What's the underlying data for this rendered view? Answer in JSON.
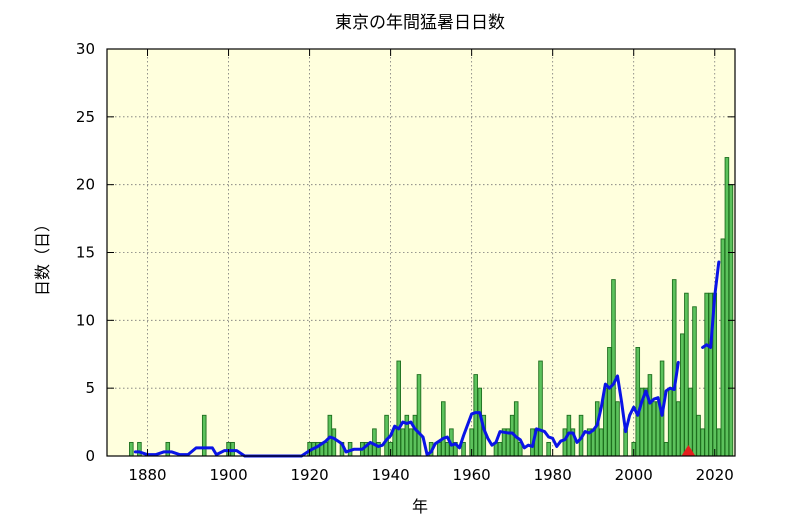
{
  "chart_data": {
    "type": "bar",
    "title": "東京の年間猛暑日日数",
    "xlabel": "年",
    "ylabel": "日数（日）",
    "xlim": [
      1870,
      2025
    ],
    "ylim": [
      0,
      30
    ],
    "x_ticks": [
      1880,
      1900,
      1920,
      1940,
      1960,
      1980,
      2000,
      2020
    ],
    "y_ticks": [
      0,
      5,
      10,
      15,
      20,
      25,
      30
    ],
    "grid": true,
    "legend": "none",
    "colors": {
      "background": "#ffffdd",
      "bar_fill": "#5cc25c",
      "bar_stroke": "#1e6e1e",
      "line": "#0a14e6",
      "marker": "#e61e1e"
    },
    "series": [
      {
        "type": "bar",
        "points": [
          [
            1876,
            1
          ],
          [
            1878,
            1
          ],
          [
            1885,
            1
          ],
          [
            1894,
            3
          ],
          [
            1900,
            1
          ],
          [
            1901,
            1
          ],
          [
            1920,
            1
          ],
          [
            1921,
            1
          ],
          [
            1922,
            1
          ],
          [
            1923,
            1
          ],
          [
            1924,
            1
          ],
          [
            1925,
            3
          ],
          [
            1926,
            2
          ],
          [
            1928,
            1
          ],
          [
            1930,
            1
          ],
          [
            1933,
            1
          ],
          [
            1934,
            1
          ],
          [
            1935,
            1
          ],
          [
            1936,
            2
          ],
          [
            1937,
            1
          ],
          [
            1939,
            3
          ],
          [
            1940,
            1
          ],
          [
            1941,
            2
          ],
          [
            1942,
            7
          ],
          [
            1943,
            2
          ],
          [
            1944,
            3
          ],
          [
            1945,
            2
          ],
          [
            1946,
            3
          ],
          [
            1947,
            6
          ],
          [
            1950,
            1
          ],
          [
            1952,
            1
          ],
          [
            1953,
            4
          ],
          [
            1954,
            1
          ],
          [
            1955,
            2
          ],
          [
            1956,
            1
          ],
          [
            1958,
            1
          ],
          [
            1960,
            2
          ],
          [
            1961,
            6
          ],
          [
            1962,
            5
          ],
          [
            1963,
            3
          ],
          [
            1966,
            1
          ],
          [
            1967,
            1
          ],
          [
            1968,
            2
          ],
          [
            1969,
            2
          ],
          [
            1970,
            3
          ],
          [
            1971,
            4
          ],
          [
            1972,
            1
          ],
          [
            1975,
            2
          ],
          [
            1976,
            2
          ],
          [
            1977,
            7
          ],
          [
            1979,
            1
          ],
          [
            1983,
            2
          ],
          [
            1984,
            3
          ],
          [
            1985,
            2
          ],
          [
            1987,
            3
          ],
          [
            1989,
            2
          ],
          [
            1990,
            2
          ],
          [
            1991,
            4
          ],
          [
            1992,
            2
          ],
          [
            1993,
            5
          ],
          [
            1994,
            8
          ],
          [
            1995,
            13
          ],
          [
            1996,
            4
          ],
          [
            1998,
            2
          ],
          [
            2000,
            1
          ],
          [
            2001,
            8
          ],
          [
            2002,
            5
          ],
          [
            2003,
            5
          ],
          [
            2004,
            6
          ],
          [
            2005,
            4
          ],
          [
            2006,
            4
          ],
          [
            2007,
            7
          ],
          [
            2008,
            1
          ],
          [
            2009,
            5
          ],
          [
            2010,
            13
          ],
          [
            2011,
            4
          ],
          [
            2012,
            9
          ],
          [
            2013,
            12
          ],
          [
            2014,
            5
          ],
          [
            2015,
            11
          ],
          [
            2016,
            3
          ],
          [
            2017,
            2
          ],
          [
            2018,
            12
          ],
          [
            2019,
            12
          ],
          [
            2020,
            12
          ],
          [
            2021,
            2
          ],
          [
            2022,
            16
          ],
          [
            2023,
            22
          ],
          [
            2024,
            20
          ]
        ]
      },
      {
        "type": "line",
        "segments": [
          [
            [
              1877,
              0.3
            ],
            [
              1878,
              0.3
            ],
            [
              1880,
              0.1
            ],
            [
              1882,
              0.1
            ],
            [
              1884,
              0.3
            ],
            [
              1886,
              0.3
            ],
            [
              1888,
              0.1
            ],
            [
              1890,
              0.1
            ],
            [
              1892,
              0.6
            ],
            [
              1896,
              0.6
            ],
            [
              1897,
              0.1
            ],
            [
              1899,
              0.4
            ],
            [
              1902,
              0.4
            ],
            [
              1904,
              0.0
            ],
            [
              1918,
              0.0
            ],
            [
              1920,
              0.4
            ],
            [
              1922,
              0.7
            ],
            [
              1924,
              1.1
            ],
            [
              1925,
              1.4
            ],
            [
              1926,
              1.3
            ],
            [
              1928,
              0.9
            ],
            [
              1929,
              0.3
            ],
            [
              1931,
              0.5
            ],
            [
              1933,
              0.5
            ],
            [
              1935,
              1.0
            ],
            [
              1937,
              0.7
            ],
            [
              1938,
              0.8
            ],
            [
              1939,
              1.2
            ],
            [
              1940,
              1.5
            ],
            [
              1941,
              2.2
            ],
            [
              1942,
              2.0
            ],
            [
              1943,
              2.5
            ],
            [
              1944,
              2.4
            ],
            [
              1945,
              2.5
            ],
            [
              1946,
              2.0
            ],
            [
              1947,
              1.7
            ],
            [
              1948,
              1.4
            ],
            [
              1949,
              0.1
            ],
            [
              1950,
              0.3
            ],
            [
              1951,
              0.9
            ],
            [
              1953,
              1.3
            ],
            [
              1954,
              1.4
            ],
            [
              1955,
              0.8
            ],
            [
              1956,
              0.9
            ],
            [
              1957,
              0.6
            ],
            [
              1958,
              1.5
            ],
            [
              1959,
              2.3
            ],
            [
              1960,
              3.1
            ],
            [
              1961,
              3.2
            ],
            [
              1962,
              3.2
            ],
            [
              1963,
              2.0
            ],
            [
              1964,
              1.3
            ],
            [
              1965,
              0.8
            ],
            [
              1966,
              1.0
            ],
            [
              1967,
              1.8
            ],
            [
              1969,
              1.7
            ],
            [
              1970,
              1.7
            ],
            [
              1971,
              1.4
            ],
            [
              1972,
              1.2
            ],
            [
              1973,
              0.6
            ],
            [
              1974,
              0.8
            ],
            [
              1975,
              0.7
            ],
            [
              1976,
              2.0
            ],
            [
              1977,
              1.9
            ],
            [
              1978,
              1.8
            ],
            [
              1979,
              1.4
            ],
            [
              1980,
              1.3
            ],
            [
              1981,
              0.7
            ],
            [
              1982,
              1.1
            ],
            [
              1983,
              1.2
            ],
            [
              1984,
              1.7
            ],
            [
              1985,
              1.7
            ],
            [
              1986,
              1.0
            ],
            [
              1987,
              1.3
            ],
            [
              1988,
              1.8
            ],
            [
              1989,
              1.7
            ],
            [
              1990,
              1.9
            ],
            [
              1991,
              2.3
            ],
            [
              1992,
              3.6
            ],
            [
              1993,
              5.3
            ],
            [
              1994,
              5.0
            ],
            [
              1995,
              5.3
            ],
            [
              1996,
              5.9
            ],
            [
              1997,
              4.0
            ],
            [
              1998,
              1.8
            ],
            [
              1999,
              3.0
            ],
            [
              2000,
              3.6
            ],
            [
              2001,
              3.0
            ],
            [
              2002,
              4.0
            ],
            [
              2003,
              4.8
            ],
            [
              2004,
              3.9
            ],
            [
              2005,
              4.2
            ],
            [
              2006,
              4.3
            ],
            [
              2007,
              3.0
            ],
            [
              2008,
              4.8
            ],
            [
              2009,
              5.0
            ],
            [
              2010,
              4.9
            ],
            [
              2011,
              6.9
            ]
          ],
          [
            [
              2017,
              8.0
            ],
            [
              2018,
              8.2
            ],
            [
              2019,
              8.0
            ],
            [
              2020,
              11.8
            ],
            [
              2021,
              14.3
            ]
          ]
        ]
      }
    ],
    "annotations": [
      {
        "type": "triangle-marker",
        "x": 2013.5,
        "y": 0
      }
    ]
  }
}
